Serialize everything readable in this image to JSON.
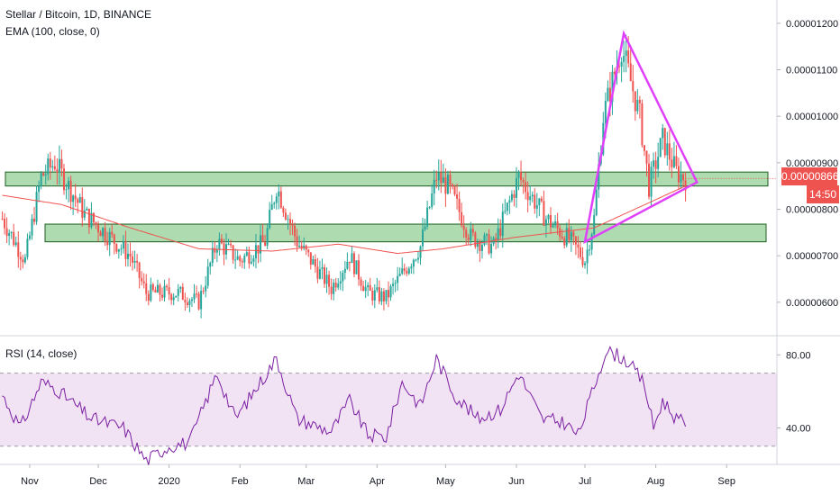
{
  "header": {
    "title": "Stellar / Bitcoin, 1D, BINANCE",
    "ema_label": "EMA (100, close, 0)",
    "rsi_label": "RSI (14, close)"
  },
  "price_tag": {
    "value": "0.00000866",
    "countdown": "14:50",
    "color": "#ef5350"
  },
  "colors": {
    "up": "#26a69a",
    "down": "#ef5350",
    "ema": "#ef5350",
    "zone_fill": "#4caf50",
    "triangle": "#e040fb",
    "rsi": "#7b1fa2",
    "rsi_band": "#e1bee7"
  },
  "chart_data": [
    {
      "type": "candlestick",
      "title": "Stellar / Bitcoin, 1D, BINANCE",
      "y_ticks": [
        "0.00000600",
        "0.00000700",
        "0.00000800",
        "0.00000900",
        "0.00001000",
        "0.00001100",
        "0.00001200"
      ],
      "x_ticks": [
        "Nov",
        "Dec",
        "2020",
        "Feb",
        "Mar",
        "Apr",
        "May",
        "Jun",
        "Jul",
        "Aug",
        "Sep"
      ],
      "ylim": [
        5.3e-06,
        1.25e-05
      ],
      "anchors": [
        {
          "date": "2019-10-20",
          "close": 7.8e-06
        },
        {
          "date": "2019-10-30",
          "close": 6.9e-06
        },
        {
          "date": "2019-11-06",
          "close": 8.7e-06
        },
        {
          "date": "2019-11-12",
          "close": 9e-06
        },
        {
          "date": "2019-11-25",
          "close": 7.9e-06
        },
        {
          "date": "2019-12-15",
          "close": 7e-06
        },
        {
          "date": "2019-12-22",
          "close": 6.2e-06
        },
        {
          "date": "2020-01-05",
          "close": 6.2e-06
        },
        {
          "date": "2020-01-14",
          "close": 6e-06
        },
        {
          "date": "2020-01-22",
          "close": 7.3e-06
        },
        {
          "date": "2020-02-01",
          "close": 6.9e-06
        },
        {
          "date": "2020-02-12",
          "close": 7.3e-06
        },
        {
          "date": "2020-02-17",
          "close": 8.5e-06
        },
        {
          "date": "2020-02-26",
          "close": 7.3e-06
        },
        {
          "date": "2020-03-12",
          "close": 6.3e-06
        },
        {
          "date": "2020-03-20",
          "close": 7e-06
        },
        {
          "date": "2020-03-28",
          "close": 6.2e-06
        },
        {
          "date": "2020-04-05",
          "close": 6.1e-06
        },
        {
          "date": "2020-04-20",
          "close": 7.2e-06
        },
        {
          "date": "2020-04-27",
          "close": 8.7e-06
        },
        {
          "date": "2020-05-02",
          "close": 8.5e-06
        },
        {
          "date": "2020-05-12",
          "close": 7.4e-06
        },
        {
          "date": "2020-05-22",
          "close": 7.2e-06
        },
        {
          "date": "2020-06-02",
          "close": 8.7e-06
        },
        {
          "date": "2020-06-14",
          "close": 7.8e-06
        },
        {
          "date": "2020-06-25",
          "close": 7.3e-06
        },
        {
          "date": "2020-07-01",
          "close": 6.9e-06
        },
        {
          "date": "2020-07-05",
          "close": 7.8e-06
        },
        {
          "date": "2020-07-09",
          "close": 1e-05
        },
        {
          "date": "2020-07-17",
          "close": 1.15e-05
        },
        {
          "date": "2020-07-25",
          "close": 1e-05
        },
        {
          "date": "2020-07-29",
          "close": 8.5e-06
        },
        {
          "date": "2020-08-04",
          "close": 9.5e-06
        },
        {
          "date": "2020-08-10",
          "close": 8.8e-06
        },
        {
          "date": "2020-08-14",
          "close": 8.66e-06
        }
      ],
      "ema_anchors": [
        {
          "date": "2019-10-20",
          "value": 8.3e-06
        },
        {
          "date": "2019-11-15",
          "value": 8.1e-06
        },
        {
          "date": "2019-12-15",
          "value": 7.6e-06
        },
        {
          "date": "2020-01-14",
          "value": 7.15e-06
        },
        {
          "date": "2020-02-15",
          "value": 7.1e-06
        },
        {
          "date": "2020-03-15",
          "value": 7.25e-06
        },
        {
          "date": "2020-04-10",
          "value": 7.05e-06
        },
        {
          "date": "2020-04-30",
          "value": 7.15e-06
        },
        {
          "date": "2020-06-01",
          "value": 7.4e-06
        },
        {
          "date": "2020-07-05",
          "value": 7.6e-06
        },
        {
          "date": "2020-08-14",
          "value": 8.5e-06
        }
      ],
      "zones": [
        {
          "from": 8.5e-06,
          "to": 8.8e-06
        },
        {
          "from": 7.3e-06,
          "to": 7.68e-06
        }
      ],
      "triangle": [
        {
          "date": "2020-07-01",
          "price": 7.3e-06
        },
        {
          "date": "2020-07-18",
          "price": 1.178e-05
        },
        {
          "date": "2020-08-19",
          "price": 8.58e-06
        }
      ]
    },
    {
      "type": "line",
      "title": "RSI (14, close)",
      "y_ticks": [
        "40.00",
        "80.00"
      ],
      "ylim": [
        20,
        90
      ],
      "band": [
        30,
        70
      ],
      "anchors": [
        {
          "date": "2019-10-20",
          "value": 58
        },
        {
          "date": "2019-10-28",
          "value": 40
        },
        {
          "date": "2019-11-06",
          "value": 65
        },
        {
          "date": "2019-11-12",
          "value": 62
        },
        {
          "date": "2019-11-28",
          "value": 45
        },
        {
          "date": "2019-12-12",
          "value": 40
        },
        {
          "date": "2019-12-22",
          "value": 22
        },
        {
          "date": "2020-01-01",
          "value": 30
        },
        {
          "date": "2020-01-10",
          "value": 32
        },
        {
          "date": "2020-01-22",
          "value": 70
        },
        {
          "date": "2020-01-30",
          "value": 45
        },
        {
          "date": "2020-02-10",
          "value": 65
        },
        {
          "date": "2020-02-17",
          "value": 78
        },
        {
          "date": "2020-02-26",
          "value": 45
        },
        {
          "date": "2020-03-12",
          "value": 38
        },
        {
          "date": "2020-03-20",
          "value": 55
        },
        {
          "date": "2020-03-28",
          "value": 36
        },
        {
          "date": "2020-04-05",
          "value": 35
        },
        {
          "date": "2020-04-12",
          "value": 65
        },
        {
          "date": "2020-04-20",
          "value": 52
        },
        {
          "date": "2020-04-27",
          "value": 78
        },
        {
          "date": "2020-05-05",
          "value": 58
        },
        {
          "date": "2020-05-15",
          "value": 45
        },
        {
          "date": "2020-05-25",
          "value": 50
        },
        {
          "date": "2020-06-02",
          "value": 70
        },
        {
          "date": "2020-06-12",
          "value": 45
        },
        {
          "date": "2020-06-22",
          "value": 43
        },
        {
          "date": "2020-06-28",
          "value": 36
        },
        {
          "date": "2020-07-03",
          "value": 55
        },
        {
          "date": "2020-07-10",
          "value": 82
        },
        {
          "date": "2020-07-15",
          "value": 80
        },
        {
          "date": "2020-07-20",
          "value": 76
        },
        {
          "date": "2020-07-27",
          "value": 64
        },
        {
          "date": "2020-07-31",
          "value": 40
        },
        {
          "date": "2020-08-04",
          "value": 55
        },
        {
          "date": "2020-08-10",
          "value": 45
        },
        {
          "date": "2020-08-14",
          "value": 42
        }
      ]
    }
  ]
}
